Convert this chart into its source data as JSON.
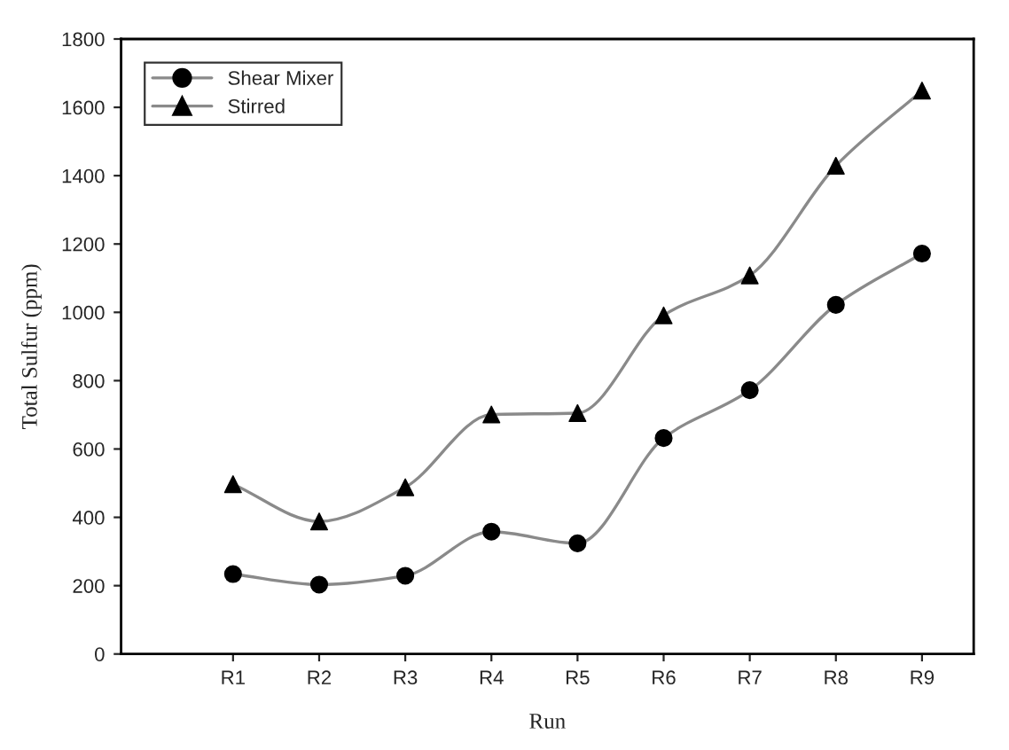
{
  "chart_data": {
    "type": "line",
    "xlabel": "Run",
    "ylabel": "Total Sulfur (ppm)",
    "categories": [
      "R1",
      "R2",
      "R3",
      "R4",
      "R5",
      "R6",
      "R7",
      "R8",
      "R9"
    ],
    "series": [
      {
        "name": "Shear Mixer",
        "color": "#000000",
        "marker": "circle",
        "values": [
          234,
          203,
          229,
          358,
          324,
          632,
          772,
          1022,
          1172
        ]
      },
      {
        "name": "Stirred",
        "color": "#000000",
        "marker": "triangle",
        "values": [
          497,
          388,
          488,
          701,
          705,
          991,
          1108,
          1429,
          1649
        ]
      }
    ],
    "ylim": [
      0,
      1800
    ],
    "yticks": [
      0,
      200,
      400,
      600,
      800,
      1000,
      1200,
      1400,
      1600,
      1800
    ],
    "grid": false,
    "legend": "top left"
  }
}
